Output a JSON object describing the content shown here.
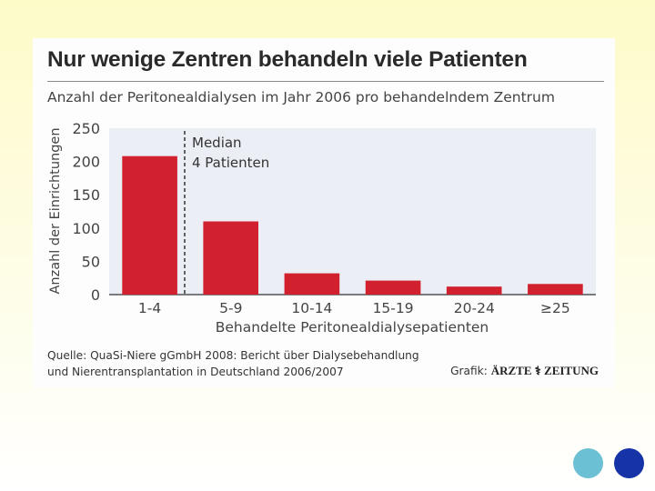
{
  "chart_data": {
    "type": "bar",
    "title": "Nur wenige Zentren behandeln viele Patienten",
    "subtitle": "Anzahl der Peritonealdialysen im Jahr 2006 pro behandelndem Zentrum",
    "categories": [
      "1-4",
      "5-9",
      "10-14",
      "15-19",
      "20-24",
      "≥25"
    ],
    "values": [
      208,
      110,
      32,
      21,
      12,
      16
    ],
    "xlabel": "Behandelte Peritonealdialysepatienten",
    "ylabel": "Anzahl der Einrichtungen",
    "ylim": [
      0,
      250
    ],
    "yticks": [
      "0",
      "50",
      "100",
      "150",
      "200",
      "250"
    ],
    "grid": false,
    "annotation": {
      "line1": "Median",
      "line2": "4 Patienten"
    },
    "bar_color": "#d1202e",
    "plot_bg": "#eceef6"
  },
  "footer": {
    "source_line1": "Quelle: QuaSi-Niere gGmbH 2008: Bericht über Dialysebehandlung",
    "source_line2": "und Nierentransplantation in Deutschland 2006/2007",
    "credit_prefix": "Grafik:",
    "credit_brand": "ÄRZTE ⚕ ZEITUNG"
  },
  "decor": {
    "dot1_color": "#6cc0d4",
    "dot2_color": "#1634a8"
  }
}
